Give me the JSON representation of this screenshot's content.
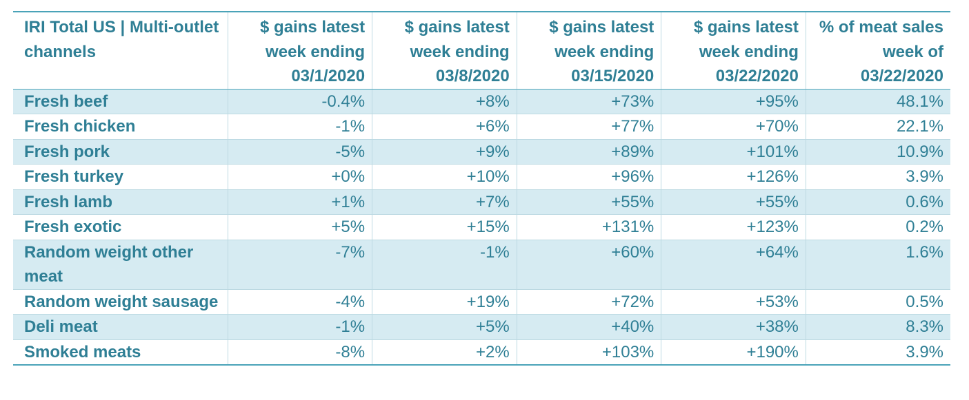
{
  "table": {
    "headers": [
      "IRI Total US | Multi-outlet channels",
      "$ gains latest week ending 03/1/2020",
      "$ gains latest week ending 03/8/2020",
      "$ gains latest week ending 03/15/2020",
      "$ gains latest week ending 03/22/2020",
      "% of meat sales week of 03/22/2020"
    ],
    "rows": [
      {
        "label": "Fresh beef",
        "values": [
          "-0.4%",
          "+8%",
          "+73%",
          "+95%",
          "48.1%"
        ]
      },
      {
        "label": "Fresh chicken",
        "values": [
          "-1%",
          "+6%",
          "+77%",
          "+70%",
          "22.1%"
        ]
      },
      {
        "label": "Fresh pork",
        "values": [
          "-5%",
          "+9%",
          "+89%",
          "+101%",
          "10.9%"
        ]
      },
      {
        "label": "Fresh turkey",
        "values": [
          "+0%",
          "+10%",
          "+96%",
          "+126%",
          "3.9%"
        ]
      },
      {
        "label": "Fresh lamb",
        "values": [
          "+1%",
          "+7%",
          "+55%",
          "+55%",
          "0.6%"
        ]
      },
      {
        "label": "Fresh exotic",
        "values": [
          "+5%",
          "+15%",
          "+131%",
          "+123%",
          "0.2%"
        ]
      },
      {
        "label": "Random weight other meat",
        "values": [
          "-7%",
          "-1%",
          "+60%",
          "+64%",
          "1.6%"
        ]
      },
      {
        "label": "Random weight sausage",
        "values": [
          "-4%",
          "+19%",
          "+72%",
          "+53%",
          "0.5%"
        ]
      },
      {
        "label": "Deli meat",
        "values": [
          "-1%",
          "+5%",
          "+40%",
          "+38%",
          "8.3%"
        ]
      },
      {
        "label": "Smoked meats",
        "values": [
          "-8%",
          "+2%",
          "+103%",
          "+190%",
          "3.9%"
        ]
      }
    ]
  },
  "colors": {
    "text": "#2f7f95",
    "band_fill": "#d6ebf2",
    "rule": "#4aa3b8",
    "grid": "#bcd9e2"
  }
}
